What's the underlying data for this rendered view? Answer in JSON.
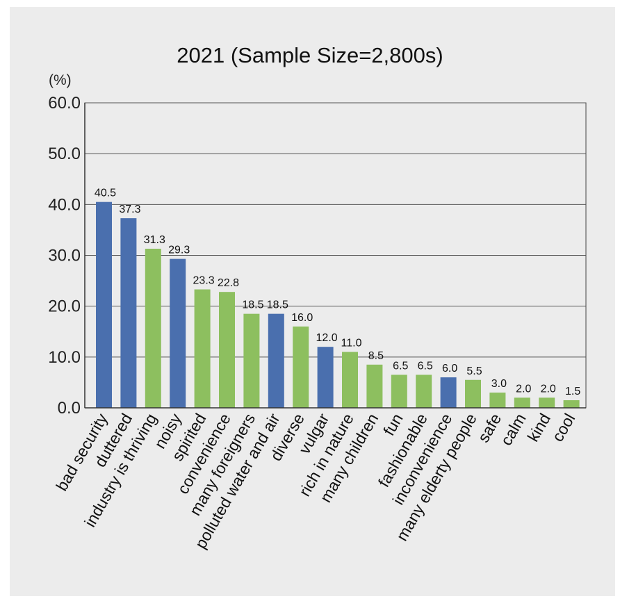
{
  "chart_data": {
    "type": "bar",
    "title": "2021 (Sample Size=2,800s)",
    "unit_label": "(%)",
    "ylim": [
      0,
      60
    ],
    "y_ticks": [
      "0.0",
      "10.0",
      "20.0",
      "30.0",
      "40.0",
      "50.0",
      "60.0"
    ],
    "grid": true,
    "categories": [
      "bad security",
      "duttered",
      "industry is thriving",
      "noisy",
      "spirited",
      "convenience",
      "many foreigners",
      "polluted water and air",
      "diverse",
      "vulgar",
      "rich in nature",
      "many children",
      "fun",
      "fashionable",
      "inconvenience",
      "many elderty people",
      "safe",
      "calm",
      "kind",
      "cool"
    ],
    "values": [
      40.5,
      37.3,
      31.3,
      29.3,
      23.3,
      22.8,
      18.5,
      18.5,
      16.0,
      12.0,
      11.0,
      8.5,
      6.5,
      6.5,
      6.0,
      5.5,
      3.0,
      2.0,
      2.0,
      1.5
    ],
    "value_labels": [
      "40.5",
      "37.3",
      "31.3",
      "29.3",
      "23.3",
      "22.8",
      "18.5",
      "18.5",
      "16.0",
      "12.0",
      "11.0",
      "8.5",
      "6.5",
      "6.5",
      "6.0",
      "5.5",
      "3.0",
      "2.0",
      "2.0",
      "1.5"
    ],
    "bar_colors": [
      "#4a6fae",
      "#4a6fae",
      "#8dbf5f",
      "#4a6fae",
      "#8dbf5f",
      "#8dbf5f",
      "#8dbf5f",
      "#4a6fae",
      "#8dbf5f",
      "#4a6fae",
      "#8dbf5f",
      "#8dbf5f",
      "#8dbf5f",
      "#8dbf5f",
      "#4a6fae",
      "#8dbf5f",
      "#8dbf5f",
      "#8dbf5f",
      "#8dbf5f",
      "#8dbf5f"
    ],
    "colors": {
      "negative": "#4a6fae",
      "positive": "#8dbf5f",
      "gridline": "#555555"
    }
  }
}
